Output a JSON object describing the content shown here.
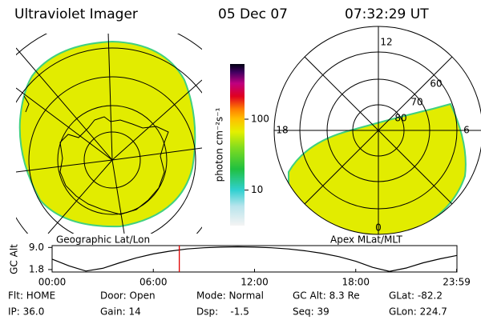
{
  "header": {
    "title": "Ultraviolet Imager",
    "date": "05 Dec 07",
    "time": "07:32:29 UT"
  },
  "geo_panel": {
    "label": "Geographic Lat/Lon"
  },
  "apex_panel": {
    "label": "Apex MLat/MLT",
    "mlt_labels": [
      "12",
      "18",
      "6",
      "0"
    ],
    "lat_labels": [
      "60",
      "70",
      "80"
    ]
  },
  "colorbar": {
    "label": "photon cm⁻²s⁻¹",
    "log_scale": true,
    "lim": [
      3.16,
      600
    ],
    "ticks": [
      100,
      10
    ]
  },
  "altitude_plot": {
    "ylabel": "GC Alt",
    "ylim": [
      1.0,
      9.6
    ],
    "yticks": [
      {
        "value": 9.0,
        "label": "9.0"
      },
      1.8
    ],
    "xlim": [
      0,
      24
    ],
    "xticks": [
      {
        "value": 0,
        "label": "00:00"
      },
      {
        "value": 6,
        "label": "06:00"
      },
      {
        "value": 12,
        "label": "12:00"
      },
      {
        "value": 18,
        "label": "18:00"
      },
      {
        "value": 23.98,
        "label": "23:59"
      }
    ],
    "x": [
      0,
      1,
      2,
      3,
      4,
      5,
      6,
      7,
      8,
      9,
      10,
      11,
      12,
      13,
      14,
      15,
      16,
      17,
      18,
      19,
      20,
      21,
      22,
      23,
      24
    ],
    "values": [
      5.2,
      3.0,
      1.3,
      2.2,
      4.0,
      5.6,
      6.9,
      7.8,
      8.5,
      8.9,
      9.1,
      9.2,
      9.1,
      8.9,
      8.5,
      7.9,
      7.1,
      6.0,
      4.5,
      2.5,
      1.2,
      2.3,
      4.0,
      5.3,
      6.4
    ],
    "current_time": 7.54,
    "current_color": "#e00000"
  },
  "status": {
    "rows": [
      [
        "Flt: HOME",
        "Door: Open",
        "Mode: Normal",
        "GC Alt: 8.3 Re",
        "GLat: -82.2"
      ],
      [
        "IP: 36.0",
        "Gain: 14",
        "Dsp:    -1.5",
        "Seq: 39",
        "GLon: 224.7"
      ]
    ]
  }
}
